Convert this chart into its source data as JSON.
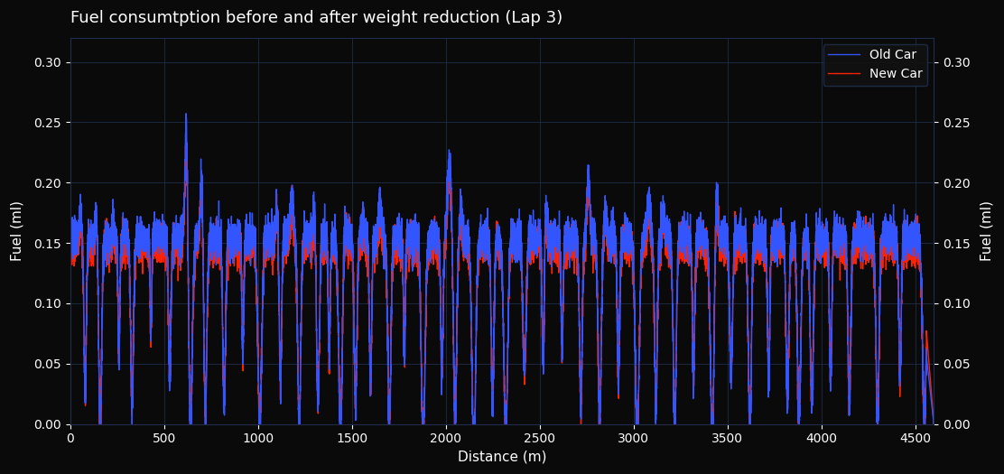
{
  "title": "Fuel consumtption before and after weight reduction (Lap 3)",
  "xlabel": "Distance (m)",
  "ylabel_left": "Fuel (ml)",
  "ylabel_right": "Fuel (ml)",
  "xlim": [
    0,
    4600
  ],
  "ylim": [
    0,
    0.32
  ],
  "yticks": [
    0,
    0.05,
    0.1,
    0.15,
    0.2,
    0.25,
    0.3
  ],
  "xticks": [
    0,
    500,
    1000,
    1500,
    2000,
    2500,
    3000,
    3500,
    4000,
    4500
  ],
  "background_color": "#0a0a0a",
  "axes_color": "#0a0a0a",
  "grid_color": "#1e2d4a",
  "text_color": "#ffffff",
  "line_color_old": "#3355ff",
  "line_color_new": "#ff2200",
  "legend_labels": [
    "Old Car",
    "New Car"
  ],
  "title_fontsize": 13,
  "label_fontsize": 11,
  "tick_fontsize": 10,
  "line_width": 1.0
}
